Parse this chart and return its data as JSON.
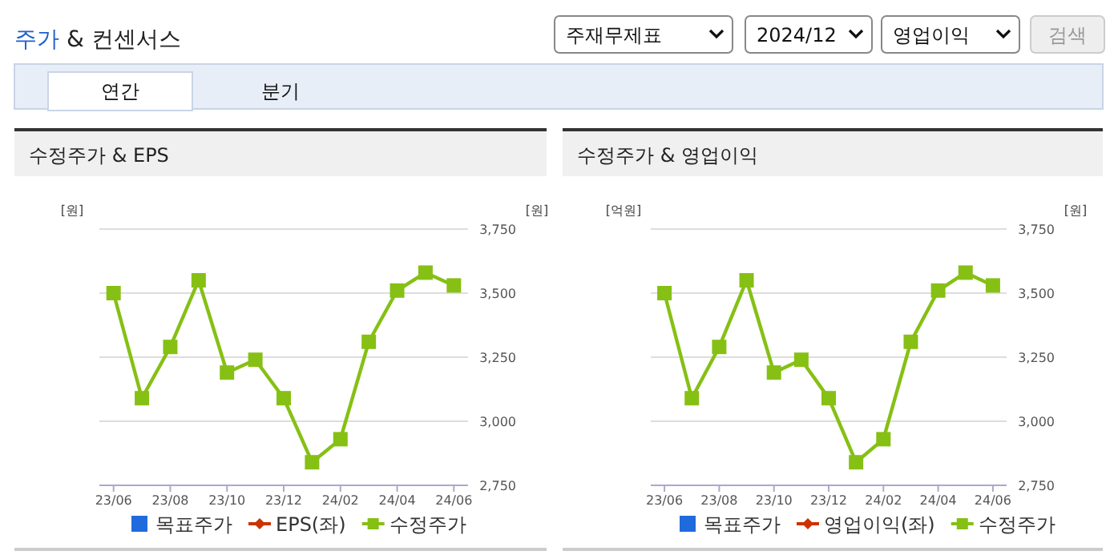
{
  "chart_data": [
    {
      "type": "other",
      "title": "주가 & 컨센서스",
      "annotations": [
        "주재무제표",
        "2024/12",
        "영업이익",
        "검색",
        "연간",
        "분기"
      ]
    },
    {
      "type": "line",
      "title": "수정주가 & EPS",
      "ylabel": "[원]",
      "y2label": "[원]",
      "categories": [
        "23/06",
        null,
        "23/08",
        null,
        "23/10",
        null,
        "23/12",
        null,
        "24/02",
        null,
        "24/04",
        null,
        "24/06"
      ],
      "y2lim": [
        2750,
        3750
      ],
      "y2ticks": [
        {
          "value": 2750,
          "label": "2,750"
        },
        {
          "value": 3000,
          "label": "3,000"
        },
        {
          "value": 3250,
          "label": "3,250"
        },
        {
          "value": 3500,
          "label": "3,500"
        },
        {
          "value": 3750,
          "label": "3,750"
        }
      ],
      "grid": "y",
      "legend": "bottom",
      "series": [
        {
          "name": "목표주가",
          "color": "#1f6bdc",
          "marker": "square",
          "values": [
            null,
            null,
            null,
            null,
            null,
            null,
            null,
            null,
            null,
            null,
            null,
            null,
            null
          ]
        },
        {
          "name": "EPS(좌)",
          "color": "#cc3300",
          "marker": "diamond",
          "values": [
            null,
            null,
            null,
            null,
            null,
            null,
            null,
            null,
            null,
            null,
            null,
            null,
            null
          ]
        },
        {
          "name": "수정주가",
          "color": "#86c014",
          "marker": "square",
          "axis": "y2",
          "values": [
            3500,
            3090,
            3290,
            3550,
            3190,
            3240,
            3090,
            2840,
            2930,
            3310,
            3510,
            3580,
            3530
          ]
        }
      ]
    },
    {
      "type": "line",
      "title": "수정주가 & 영업이익",
      "ylabel": "[억원]",
      "y2label": "[원]",
      "categories": [
        "23/06",
        null,
        "23/08",
        null,
        "23/10",
        null,
        "23/12",
        null,
        "24/02",
        null,
        "24/04",
        null,
        "24/06"
      ],
      "y2lim": [
        2750,
        3750
      ],
      "y2ticks": [
        {
          "value": 2750,
          "label": "2,750"
        },
        {
          "value": 3000,
          "label": "3,000"
        },
        {
          "value": 3250,
          "label": "3,250"
        },
        {
          "value": 3500,
          "label": "3,500"
        },
        {
          "value": 3750,
          "label": "3,750"
        }
      ],
      "grid": "y",
      "legend": "bottom",
      "series": [
        {
          "name": "목표주가",
          "color": "#1f6bdc",
          "marker": "square",
          "values": [
            null,
            null,
            null,
            null,
            null,
            null,
            null,
            null,
            null,
            null,
            null,
            null,
            null
          ]
        },
        {
          "name": "영업이익(좌)",
          "color": "#cc3300",
          "marker": "diamond",
          "values": [
            null,
            null,
            null,
            null,
            null,
            null,
            null,
            null,
            null,
            null,
            null,
            null,
            null
          ]
        },
        {
          "name": "수정주가",
          "color": "#86c014",
          "marker": "square",
          "axis": "y2",
          "values": [
            3500,
            3090,
            3290,
            3550,
            3190,
            3240,
            3090,
            2840,
            2930,
            3310,
            3510,
            3580,
            3530
          ]
        }
      ]
    }
  ]
}
